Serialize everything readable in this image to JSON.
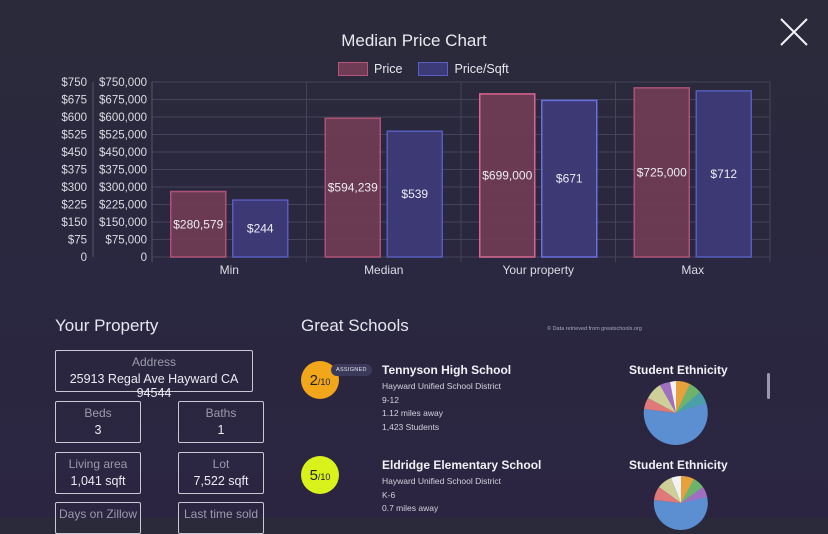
{
  "close_label": "Close",
  "chart_data": {
    "type": "bar",
    "title": "Median Price Chart",
    "categories": [
      "Min",
      "Median",
      "Your property",
      "Max"
    ],
    "series": [
      {
        "name": "Price",
        "values": [
          280579,
          594239,
          699000,
          725000
        ],
        "labels": [
          "$280,579",
          "$594,239",
          "$699,000",
          "$725,000"
        ],
        "axis": "price",
        "color": "#6e3c54",
        "border": "#b65578",
        "highlight_border": "#e36a98"
      },
      {
        "name": "Price/Sqft",
        "values": [
          244,
          539,
          671,
          712
        ],
        "labels": [
          "$244",
          "$539",
          "$671",
          "$712"
        ],
        "axis": "sqft",
        "color": "#3d3a78",
        "border": "#5b5fc4",
        "highlight_border": "#6f72e8"
      }
    ],
    "y_left_ticks": [
      "$750",
      "$675",
      "$600",
      "$525",
      "$450",
      "$375",
      "$300",
      "$225",
      "$150",
      "$75",
      "0"
    ],
    "y_right_ticks": [
      "$750,000",
      "$675,000",
      "$600,000",
      "$525,000",
      "$450,000",
      "$375,000",
      "$300,000",
      "$225,000",
      "$150,000",
      "$75,000",
      "0"
    ],
    "ylim_price": [
      0,
      750000
    ],
    "ylim_sqft": [
      0,
      750
    ],
    "grid": true,
    "legend": "top-center"
  },
  "property": {
    "title": "Your Property",
    "address_label": "Address",
    "address": "25913 Regal Ave Hayward CA 94544",
    "beds_label": "Beds",
    "beds": "3",
    "baths_label": "Baths",
    "baths": "1",
    "living_label": "Living area",
    "living": "1,041 sqft",
    "lot_label": "Lot",
    "lot": "7,522 sqft",
    "days_label": "Days on Zillow",
    "last_sold_label": "Last time sold"
  },
  "schools": {
    "title": "Great Schools",
    "credit": "© Data retrieved from greatschools.org",
    "items": [
      {
        "rating": "2",
        "out_of": "/10",
        "badge": "ASSIGNED",
        "name": "Tennyson High School",
        "district": "Hayward Unified School District",
        "grades": "9-12",
        "distance": "1.12 miles away",
        "students": "1,423 Students",
        "ethnicity_label": "Student Ethnicity",
        "rating_color": "#f2a619"
      },
      {
        "rating": "5",
        "out_of": "/10",
        "name": "Eldridge Elementary School",
        "district": "Hayward Unified School District",
        "grades": "K-6",
        "distance": "0.7 miles away",
        "ethnicity_label": "Student Ethnicity",
        "rating_color": "#d9f21b"
      }
    ]
  }
}
